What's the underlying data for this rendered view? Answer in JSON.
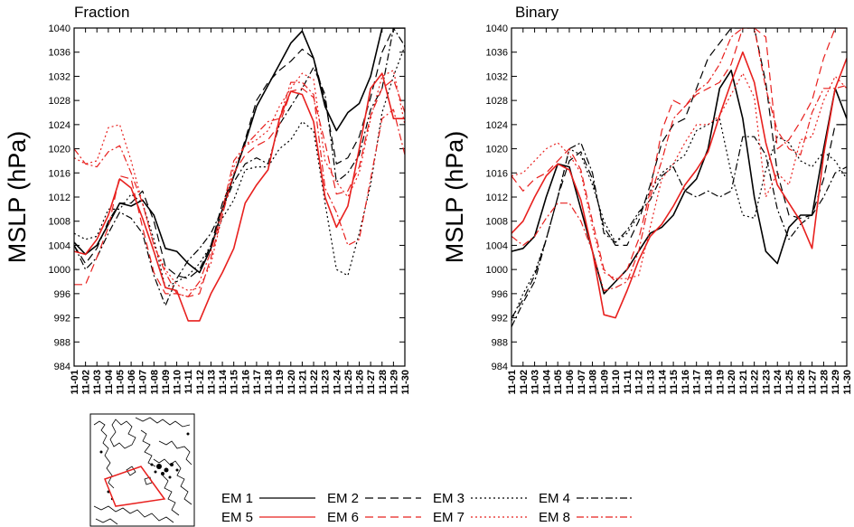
{
  "colors": {
    "black": "#000000",
    "red": "#e8201e",
    "axis": "#000000",
    "map_red": "#e8201e"
  },
  "legend": {
    "items": [
      {
        "label": "EM 1",
        "color": "#000000",
        "dash": "solid"
      },
      {
        "label": "EM 2",
        "color": "#000000",
        "dash": "long"
      },
      {
        "label": "EM 3",
        "color": "#000000",
        "dash": "dot"
      },
      {
        "label": "EM 4",
        "color": "#000000",
        "dash": "dashdot"
      },
      {
        "label": "EM 5",
        "color": "#e8201e",
        "dash": "solid"
      },
      {
        "label": "EM 6",
        "color": "#e8201e",
        "dash": "long"
      },
      {
        "label": "EM 7",
        "color": "#e8201e",
        "dash": "dot"
      },
      {
        "label": "EM 8",
        "color": "#e8201e",
        "dash": "dashdot"
      }
    ]
  },
  "inset_map": {
    "description_icon": "arctic-region-map-icon"
  },
  "chart_data": [
    {
      "type": "line",
      "title": "Fraction",
      "xlabel": "",
      "ylabel": "MSLP (hPa)",
      "ylim": [
        984,
        1040
      ],
      "yticks": [
        984,
        988,
        992,
        996,
        1000,
        1004,
        1008,
        1012,
        1016,
        1020,
        1024,
        1028,
        1032,
        1036,
        1040
      ],
      "categories": [
        "11-01",
        "11-02",
        "11-03",
        "11-04",
        "11-05",
        "11-06",
        "11-07",
        "11-08",
        "11-09",
        "11-10",
        "11-11",
        "11-12",
        "11-13",
        "11-14",
        "11-15",
        "11-16",
        "11-17",
        "11-18",
        "11-19",
        "11-20",
        "11-21",
        "11-22",
        "11-23",
        "11-24",
        "11-25",
        "11-26",
        "11-27",
        "11-28",
        "11-29",
        "11-30"
      ],
      "series": [
        {
          "name": "EM 1",
          "values": [
            1004.5,
            1002.5,
            1004,
            1007.5,
            1011,
            1010.5,
            1011.5,
            1009,
            1003.5,
            1003,
            1001,
            999.5,
            1003.5,
            1010,
            1015.5,
            1021,
            1027,
            1030.5,
            1034,
            1037.5,
            1039.5,
            1035,
            1027,
            1023,
            1026,
            1027.5,
            1032,
            1040,
            1040,
            1040
          ]
        },
        {
          "name": "EM 2",
          "values": [
            1004,
            1001,
            1003.5,
            1008,
            1011,
            1011,
            1013,
            1008,
            1000.5,
            999,
            998.5,
            1000,
            1004,
            1011,
            1015.5,
            1021.5,
            1028,
            1031,
            1033,
            1034.5,
            1036.5,
            1035,
            1028,
            1017.5,
            1018.5,
            1022,
            1028.5,
            1036,
            1040,
            1040
          ]
        },
        {
          "name": "EM 3",
          "values": [
            1006,
            1005,
            1005.5,
            1010,
            1010,
            1012.5,
            1011,
            1005,
            997,
            998,
            999,
            1001,
            1004,
            1008.5,
            1011.5,
            1016.5,
            1017,
            1017,
            1020,
            1021.5,
            1024.5,
            1023,
            1011,
            1000,
            999,
            1006,
            1014,
            1026,
            1032,
            1037
          ]
        },
        {
          "name": "EM 4",
          "values": [
            1004,
            1000,
            1002,
            1006,
            1009.5,
            1008.5,
            1006,
            999,
            994,
            998.5,
            1001.5,
            1003.5,
            1006,
            1010,
            1014.5,
            1017.5,
            1018.5,
            1017.5,
            1024,
            1027,
            1030,
            1033.5,
            1029,
            1014.5,
            1016,
            1019,
            1026.5,
            1030,
            1040,
            1037
          ]
        },
        {
          "name": "EM 5",
          "values": [
            1003,
            1002.5,
            1005,
            1009,
            1015,
            1013.5,
            1008.5,
            1003,
            997,
            996.5,
            991.5,
            991.5,
            996,
            999.5,
            1003.5,
            1011,
            1014,
            1016.5,
            1025,
            1029.5,
            1029,
            1024.5,
            1012,
            1007,
            1010.5,
            1020,
            1030,
            1032.5,
            1025,
            1025
          ]
        },
        {
          "name": "EM 6",
          "values": [
            997.5,
            997.5,
            1002,
            1007,
            1015.5,
            1015,
            1007,
            999.5,
            996,
            996,
            995.5,
            996,
            1002,
            1009,
            1016,
            1019,
            1020.5,
            1021.5,
            1024,
            1029.5,
            1030,
            1028.5,
            1021,
            1012.5,
            1013,
            1017,
            1025.5,
            1030,
            1031.5,
            1026
          ]
        },
        {
          "name": "EM 7",
          "values": [
            1018.5,
            1017.5,
            1018,
            1023.5,
            1024,
            1018,
            1011,
            1004,
            1000,
            997.5,
            996.5,
            997,
            1001,
            1009,
            1017,
            1020.5,
            1021.5,
            1023,
            1027,
            1030,
            1032.5,
            1031.5,
            1018,
            1014.5,
            1012,
            1016,
            1025,
            1032,
            1033,
            1024
          ]
        },
        {
          "name": "EM 8",
          "values": [
            1020,
            1017.5,
            1017,
            1019.5,
            1020.5,
            1016,
            1011,
            1004,
            999.5,
            996,
            995.5,
            998,
            1003,
            1010,
            1018,
            1020.5,
            1022.5,
            1024.5,
            1025,
            1031,
            1031,
            1029,
            1013.5,
            1009.5,
            1004,
            1005,
            1015,
            1025,
            1026.5,
            1019
          ]
        }
      ]
    },
    {
      "type": "line",
      "title": "Binary",
      "xlabel": "",
      "ylabel": "MSLP (hPa)",
      "ylim": [
        984,
        1040
      ],
      "yticks": [
        984,
        988,
        992,
        996,
        1000,
        1004,
        1008,
        1012,
        1016,
        1020,
        1024,
        1028,
        1032,
        1036,
        1040
      ],
      "categories": [
        "11-01",
        "11-02",
        "11-03",
        "11-04",
        "11-05",
        "11-06",
        "11-07",
        "11-08",
        "11-09",
        "11-10",
        "11-11",
        "11-12",
        "11-13",
        "11-14",
        "11-15",
        "11-16",
        "11-17",
        "11-18",
        "11-19",
        "11-20",
        "11-21",
        "11-22",
        "11-23",
        "11-24",
        "11-25",
        "11-26",
        "11-27",
        "11-28",
        "11-29",
        "11-30"
      ],
      "series": [
        {
          "name": "EM 1",
          "values": [
            1003,
            1003.5,
            1005.5,
            1012,
            1017.5,
            1017,
            1010,
            1003,
            996,
            998,
            1000,
            1003,
            1006,
            1007,
            1009,
            1013,
            1015,
            1020,
            1030,
            1033,
            1025,
            1012,
            1003,
            1001,
            1007,
            1009,
            1009,
            1020,
            1030,
            1025
          ]
        },
        {
          "name": "EM 2",
          "values": [
            992,
            995,
            999,
            1005,
            1012,
            1018,
            1019.5,
            1015,
            1007,
            1004,
            1004,
            1008,
            1014,
            1021,
            1024,
            1025,
            1030,
            1035,
            1037.5,
            1040,
            1040,
            1040,
            1031,
            1016,
            1009,
            1008.5,
            1009,
            1015,
            1024,
            1024
          ]
        },
        {
          "name": "EM 3",
          "values": [
            991.5,
            996,
            999.5,
            1005,
            1012,
            1020,
            1019,
            1014,
            1008,
            1004.5,
            1006,
            1009,
            1013,
            1016,
            1017.5,
            1019,
            1023,
            1024,
            1025,
            1016,
            1009,
            1008.5,
            1016.5,
            1022,
            1021,
            1018,
            1017,
            1019.5,
            1018,
            1015
          ]
        },
        {
          "name": "EM 4",
          "values": [
            990.5,
            994.5,
            998,
            1005,
            1012,
            1020,
            1021,
            1016,
            1006,
            1004.5,
            1006.5,
            1009.5,
            1011.5,
            1015.5,
            1017,
            1013,
            1012,
            1013,
            1012,
            1013,
            1022,
            1022,
            1019,
            1010,
            1005,
            1007.5,
            1009,
            1012,
            1016,
            1017
          ]
        },
        {
          "name": "EM 5",
          "values": [
            1006,
            1008,
            1012,
            1015.5,
            1017.5,
            1016.5,
            1011.5,
            1003,
            992.5,
            992,
            996.5,
            1001.5,
            1005.5,
            1007.5,
            1010.5,
            1014,
            1016.5,
            1019.5,
            1025.5,
            1031,
            1036,
            1031,
            1021,
            1014,
            1011,
            1008,
            1003.5,
            1019,
            1030,
            1035
          ]
        },
        {
          "name": "EM 6",
          "values": [
            1015.5,
            1013,
            1015,
            1016,
            1018,
            1020,
            1016.5,
            1008,
            1000,
            998,
            1000,
            1005,
            1013,
            1023,
            1028,
            1027,
            1029,
            1030,
            1031,
            1034,
            1040,
            1040,
            1038.5,
            1020,
            1021.5,
            1024.5,
            1028,
            1035,
            1040,
            1040
          ]
        },
        {
          "name": "EM 7",
          "values": [
            1015.5,
            1016,
            1018,
            1020,
            1021,
            1019,
            1016,
            1007,
            999.5,
            998.5,
            998.5,
            999,
            1007,
            1015,
            1017.5,
            1021,
            1024,
            1024,
            1025.5,
            1029,
            1032.5,
            1028.5,
            1012,
            1016,
            1014,
            1021.5,
            1022,
            1028,
            1032,
            1030
          ]
        },
        {
          "name": "EM 8",
          "values": [
            1005.5,
            1004,
            1005.5,
            1008.5,
            1011,
            1011,
            1008,
            1003,
            996.5,
            997,
            998,
            1003,
            1012,
            1018,
            1025,
            1027,
            1029.5,
            1031,
            1034,
            1038.5,
            1040,
            1040,
            1030,
            1023,
            1020,
            1019,
            1026,
            1030,
            1030,
            1030.5
          ]
        }
      ]
    }
  ]
}
